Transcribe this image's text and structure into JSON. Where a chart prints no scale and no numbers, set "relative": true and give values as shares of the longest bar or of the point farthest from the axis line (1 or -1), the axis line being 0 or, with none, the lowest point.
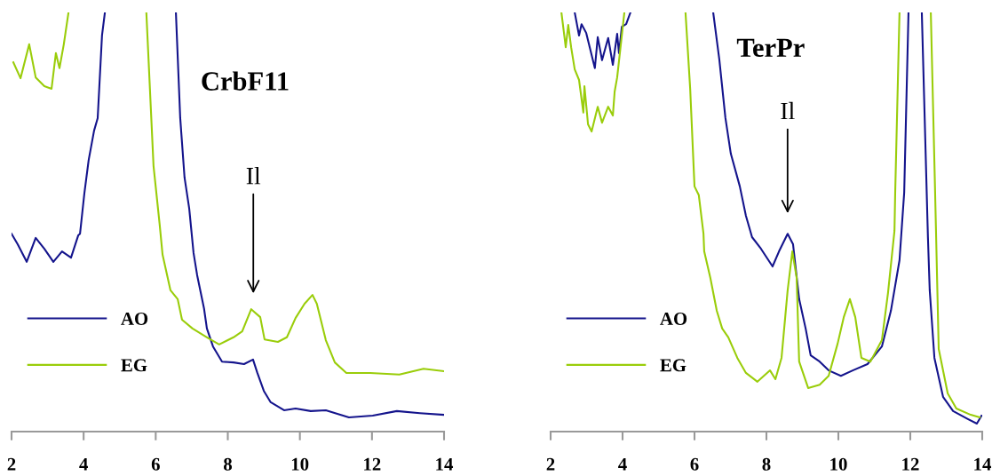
{
  "chart_data": [
    {
      "type": "line",
      "title": "CrbF11",
      "relative": true,
      "xlim": [
        2,
        14
      ],
      "xticks": [
        2,
        4,
        6,
        8,
        10,
        12,
        14
      ],
      "grid": false,
      "legend": "left",
      "marker": "none",
      "line_style": "solid",
      "annotations": [
        "Il"
      ],
      "series": [
        {
          "name": "AO",
          "color": "#14148c",
          "x": [
            2.0,
            2.17,
            2.42,
            2.67,
            2.91,
            3.16,
            3.4,
            3.65,
            3.85,
            3.9,
            4.02,
            4.14,
            4.29,
            4.39,
            4.51,
            4.59,
            5.5,
            6.56,
            6.68,
            6.8,
            6.93,
            7.05,
            7.15,
            7.34,
            7.42,
            7.59,
            7.84,
            8.16,
            8.45,
            8.7,
            8.82,
            9.0,
            9.19,
            9.56,
            9.88,
            10.3,
            10.72,
            11.36,
            12.02,
            12.69,
            13.33,
            14.0
          ],
          "values": [
            0.472,
            0.447,
            0.405,
            0.462,
            0.436,
            0.405,
            0.43,
            0.415,
            0.468,
            0.472,
            0.568,
            0.648,
            0.718,
            0.748,
            0.945,
            1.0,
            null,
            1.0,
            0.748,
            0.606,
            0.532,
            0.426,
            0.373,
            0.294,
            0.246,
            0.203,
            0.167,
            0.165,
            0.161,
            0.172,
            0.14,
            0.097,
            0.07,
            0.051,
            0.055,
            0.049,
            0.051,
            0.034,
            0.038,
            0.049,
            0.044,
            0.04
          ]
        },
        {
          "name": "EG",
          "color": "#9acd0a",
          "x": [
            2.05,
            2.25,
            2.49,
            2.67,
            2.91,
            3.11,
            3.23,
            3.33,
            3.45,
            3.58,
            4.6,
            5.74,
            5.94,
            6.11,
            6.19,
            6.41,
            6.61,
            6.73,
            7.02,
            7.42,
            7.76,
            8.16,
            8.4,
            8.65,
            8.9,
            9.02,
            9.39,
            9.64,
            9.88,
            10.13,
            10.35,
            10.47,
            10.72,
            10.97,
            11.29,
            11.95,
            12.76,
            13.43,
            14.0
          ],
          "values": [
            0.881,
            0.843,
            0.924,
            0.845,
            0.824,
            0.818,
            0.903,
            0.867,
            0.924,
            1.0,
            null,
            1.0,
            0.633,
            0.494,
            0.422,
            0.337,
            0.316,
            0.267,
            0.246,
            0.225,
            0.208,
            0.225,
            0.239,
            0.292,
            0.273,
            0.22,
            0.214,
            0.225,
            0.271,
            0.305,
            0.326,
            0.305,
            0.218,
            0.165,
            0.14,
            0.14,
            0.136,
            0.15,
            0.144
          ]
        }
      ]
    },
    {
      "type": "line",
      "title": "TerPr",
      "relative": true,
      "xlim": [
        2,
        14
      ],
      "xticks": [
        2,
        4,
        6,
        8,
        10,
        12,
        14
      ],
      "grid": false,
      "legend": "left",
      "marker": "none",
      "line_style": "solid",
      "annotations": [
        "Il"
      ],
      "series": [
        {
          "name": "AO",
          "color": "#14148c",
          "x": [
            2.67,
            2.79,
            2.86,
            2.99,
            3.23,
            3.31,
            3.43,
            3.6,
            3.73,
            3.85,
            3.9,
            3.98,
            4.1,
            4.22,
            5.4,
            6.52,
            6.69,
            6.86,
            7.01,
            7.26,
            7.43,
            7.6,
            7.85,
            8.17,
            8.35,
            8.59,
            8.74,
            8.91,
            9.09,
            9.23,
            9.48,
            9.73,
            10.07,
            10.4,
            10.81,
            11.21,
            11.46,
            11.7,
            11.83,
            11.95,
            12.1,
            12.32,
            12.49,
            12.54,
            12.67,
            12.91,
            13.19,
            13.6,
            13.85,
            13.98
          ],
          "values": [
            1.0,
            0.945,
            0.972,
            0.951,
            0.867,
            0.941,
            0.886,
            0.939,
            0.875,
            0.949,
            0.903,
            0.966,
            0.972,
            1.0,
            null,
            1.0,
            0.888,
            0.748,
            0.663,
            0.585,
            0.515,
            0.464,
            0.436,
            0.394,
            0.43,
            0.472,
            0.447,
            0.316,
            0.246,
            0.182,
            0.167,
            0.146,
            0.133,
            0.146,
            0.161,
            0.203,
            0.288,
            0.409,
            0.57,
            1.0,
            null,
            1.0,
            0.464,
            0.337,
            0.176,
            0.083,
            0.049,
            0.03,
            0.019,
            0.038
          ]
        },
        {
          "name": "EG",
          "color": "#9acd0a",
          "x": [
            2.3,
            2.42,
            2.49,
            2.57,
            2.67,
            2.79,
            2.91,
            2.94,
            3.04,
            3.14,
            3.31,
            3.43,
            3.6,
            3.73,
            3.78,
            3.85,
            3.98,
            4.05,
            4.9,
            5.75,
            5.88,
            6.0,
            6.12,
            6.25,
            6.27,
            6.44,
            6.62,
            6.77,
            6.94,
            7.19,
            7.43,
            7.75,
            8.1,
            8.25,
            8.42,
            8.59,
            8.72,
            8.84,
            8.91,
            9.16,
            9.48,
            9.73,
            9.98,
            10.15,
            10.32,
            10.47,
            10.64,
            10.89,
            11.21,
            11.38,
            11.56,
            11.58,
            11.7,
            12.1,
            12.57,
            12.69,
            12.79,
            13.04,
            13.28,
            13.68,
            13.93
          ],
          "values": [
            1.0,
            0.917,
            0.97,
            0.917,
            0.864,
            0.839,
            0.761,
            0.824,
            0.733,
            0.716,
            0.775,
            0.737,
            0.775,
            0.754,
            0.811,
            0.845,
            0.945,
            1.0,
            null,
            1.0,
            0.818,
            0.585,
            0.564,
            0.472,
            0.43,
            0.367,
            0.288,
            0.246,
            0.225,
            0.176,
            0.14,
            0.119,
            0.146,
            0.125,
            0.176,
            0.337,
            0.43,
            0.367,
            0.167,
            0.104,
            0.112,
            0.133,
            0.21,
            0.273,
            0.316,
            0.273,
            0.176,
            0.167,
            0.218,
            0.331,
            0.479,
            0.57,
            1.0,
            null,
            1.0,
            0.57,
            0.197,
            0.091,
            0.055,
            0.04,
            0.034
          ]
        }
      ]
    }
  ]
}
